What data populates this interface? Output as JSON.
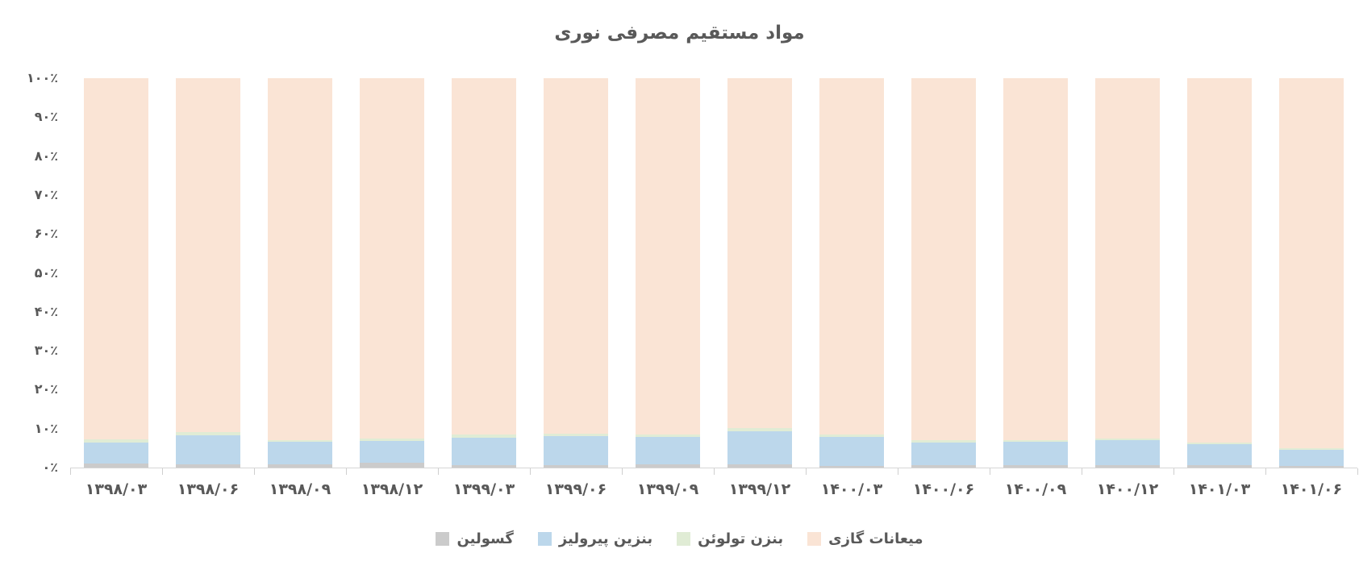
{
  "title": {
    "text": "مواد مستقیم مصرفی نوری",
    "color": "#595959"
  },
  "axis": {
    "line_color": "#d6d6d6",
    "label_color": "#595959"
  },
  "chart_data": {
    "type": "bar",
    "variant": "stacked-100-percent",
    "title": "مواد مستقیم مصرفی نوری",
    "grid": false,
    "legend_position": "bottom",
    "ylim": [
      0,
      100
    ],
    "yticks": [
      {
        "value": 0,
        "label": "۰٪"
      },
      {
        "value": 10,
        "label": "۱۰٪"
      },
      {
        "value": 20,
        "label": "۲۰٪"
      },
      {
        "value": 30,
        "label": "۳۰٪"
      },
      {
        "value": 40,
        "label": "۴۰٪"
      },
      {
        "value": 50,
        "label": "۵۰٪"
      },
      {
        "value": 60,
        "label": "۶۰٪"
      },
      {
        "value": 70,
        "label": "۷۰٪"
      },
      {
        "value": 80,
        "label": "۸۰٪"
      },
      {
        "value": 90,
        "label": "۹۰٪"
      },
      {
        "value": 100,
        "label": "۱۰۰٪"
      }
    ],
    "categories": [
      "۱۳۹۸/۰۳",
      "۱۳۹۸/۰۶",
      "۱۳۹۸/۰۹",
      "۱۳۹۸/۱۲",
      "۱۳۹۹/۰۳",
      "۱۳۹۹/۰۶",
      "۱۳۹۹/۰۹",
      "۱۳۹۹/۱۲",
      "۱۴۰۰/۰۳",
      "۱۴۰۰/۰۶",
      "۱۴۰۰/۰۹",
      "۱۴۰۰/۱۲",
      "۱۴۰۱/۰۳",
      "۱۴۰۱/۰۶"
    ],
    "stack_order_bottom_to_top": [
      "گسولین",
      "بنزین پیرولیز",
      "بنزن تولوئن",
      "میعانات گازی"
    ],
    "series": [
      {
        "key": "gasoline",
        "name": "گسولین",
        "color": "#cbcbcb",
        "values": [
          1.0,
          0.8,
          0.8,
          1.2,
          0.6,
          0.6,
          0.8,
          0.8,
          0.5,
          0.6,
          0.6,
          0.6,
          0.6,
          0.4
        ]
      },
      {
        "key": "pyrolysis",
        "name": "بنزین پیرولیز",
        "color": "#bcd7eb",
        "values": [
          5.5,
          7.4,
          5.8,
          5.6,
          7.0,
          7.4,
          7.0,
          8.5,
          7.4,
          5.8,
          6.0,
          6.4,
          5.4,
          4.2
        ]
      },
      {
        "key": "toluene",
        "name": "بنزن تولوئن",
        "color": "#e0ecd5",
        "values": [
          0.8,
          1.0,
          0.5,
          0.6,
          0.8,
          0.6,
          0.6,
          0.8,
          0.6,
          0.6,
          0.5,
          0.5,
          0.5,
          0.4
        ]
      },
      {
        "key": "condensate",
        "name": "میعانات گازی",
        "color": "#fae4d5",
        "values": [
          92.7,
          90.8,
          92.9,
          92.6,
          91.6,
          91.4,
          91.6,
          89.9,
          91.5,
          93.0,
          92.9,
          92.5,
          93.5,
          95.0
        ]
      }
    ]
  },
  "legend": {
    "items": [
      {
        "label": "گسولین",
        "color": "#cbcbcb"
      },
      {
        "label": "بنزین پیرولیز",
        "color": "#bcd7eb"
      },
      {
        "label": "بنزن تولوئن",
        "color": "#e0ecd5"
      },
      {
        "label": "میعانات گازی",
        "color": "#fae4d5"
      }
    ]
  }
}
